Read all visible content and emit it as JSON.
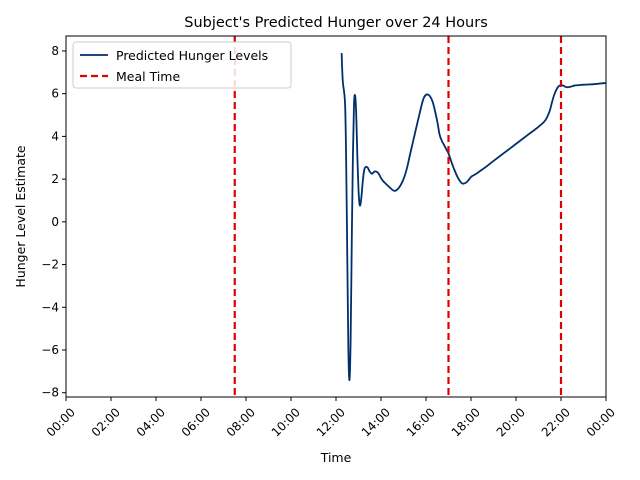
{
  "chart_data": {
    "type": "line",
    "title": "Subject's Predicted Hunger over 24 Hours",
    "xlabel": "Time",
    "ylabel": "Hunger Level Estimate",
    "x_unit": "hour of day",
    "xlim": [
      0,
      24
    ],
    "ylim": [
      -8.2,
      8.7
    ],
    "x_ticks": [
      0,
      2,
      4,
      6,
      8,
      10,
      12,
      14,
      16,
      18,
      20,
      22,
      24
    ],
    "x_tick_labels": [
      "00:00",
      "02:00",
      "04:00",
      "06:00",
      "08:00",
      "10:00",
      "12:00",
      "14:00",
      "16:00",
      "18:00",
      "20:00",
      "22:00",
      "00:00"
    ],
    "y_ticks": [
      -8,
      -6,
      -4,
      -2,
      0,
      2,
      4,
      6,
      8
    ],
    "y_tick_labels": [
      "−8",
      "−6",
      "−4",
      "−2",
      "0",
      "2",
      "4",
      "6",
      "8"
    ],
    "grid": false,
    "legend_position": "top-left",
    "series": [
      {
        "name": "Predicted Hunger Levels",
        "color": "#00306b",
        "style": "solid",
        "x": [
          12.25,
          12.3,
          12.4,
          12.45,
          12.5,
          12.55,
          12.6,
          12.65,
          12.7,
          12.75,
          12.8,
          12.85,
          12.9,
          12.95,
          13.0,
          13.05,
          13.1,
          13.15,
          13.2,
          13.25,
          13.3,
          13.4,
          13.5,
          13.6,
          13.7,
          13.8,
          13.9,
          14.0,
          14.1,
          14.2,
          14.4,
          14.6,
          14.8,
          15.0,
          15.15,
          15.3,
          15.5,
          15.7,
          15.9,
          16.1,
          16.3,
          16.5,
          16.6,
          16.7,
          16.8,
          16.9,
          17.0,
          17.1,
          17.2,
          17.4,
          17.6,
          17.8,
          18.0,
          18.15,
          18.3,
          18.5,
          18.7,
          19.0,
          19.5,
          20.0,
          20.5,
          21.0,
          21.3,
          21.5,
          21.6,
          21.7,
          21.8,
          21.9,
          22.0,
          22.1,
          22.2,
          22.3,
          22.4,
          22.5,
          22.6,
          22.8,
          23.0,
          23.5,
          24.0
        ],
        "y": [
          7.9,
          6.6,
          5.6,
          3.0,
          -1.5,
          -6.0,
          -7.4,
          -5.5,
          -1.0,
          3.0,
          5.5,
          5.9,
          5.0,
          3.0,
          1.5,
          0.8,
          0.9,
          1.4,
          2.0,
          2.4,
          2.55,
          2.55,
          2.35,
          2.25,
          2.35,
          2.35,
          2.25,
          2.05,
          1.9,
          1.8,
          1.6,
          1.45,
          1.6,
          2.0,
          2.5,
          3.2,
          4.1,
          5.0,
          5.8,
          5.95,
          5.6,
          4.7,
          4.1,
          3.8,
          3.6,
          3.4,
          3.2,
          2.9,
          2.6,
          2.1,
          1.8,
          1.85,
          2.1,
          2.2,
          2.3,
          2.45,
          2.6,
          2.85,
          3.25,
          3.65,
          4.05,
          4.45,
          4.75,
          5.2,
          5.6,
          5.95,
          6.2,
          6.35,
          6.4,
          6.38,
          6.32,
          6.3,
          6.32,
          6.35,
          6.38,
          6.4,
          6.42,
          6.45,
          6.5
        ]
      },
      {
        "name": "Meal Time",
        "color": "#e00000",
        "style": "dashed",
        "vlines_x": [
          7.5,
          17.0,
          22.0
        ]
      }
    ]
  }
}
